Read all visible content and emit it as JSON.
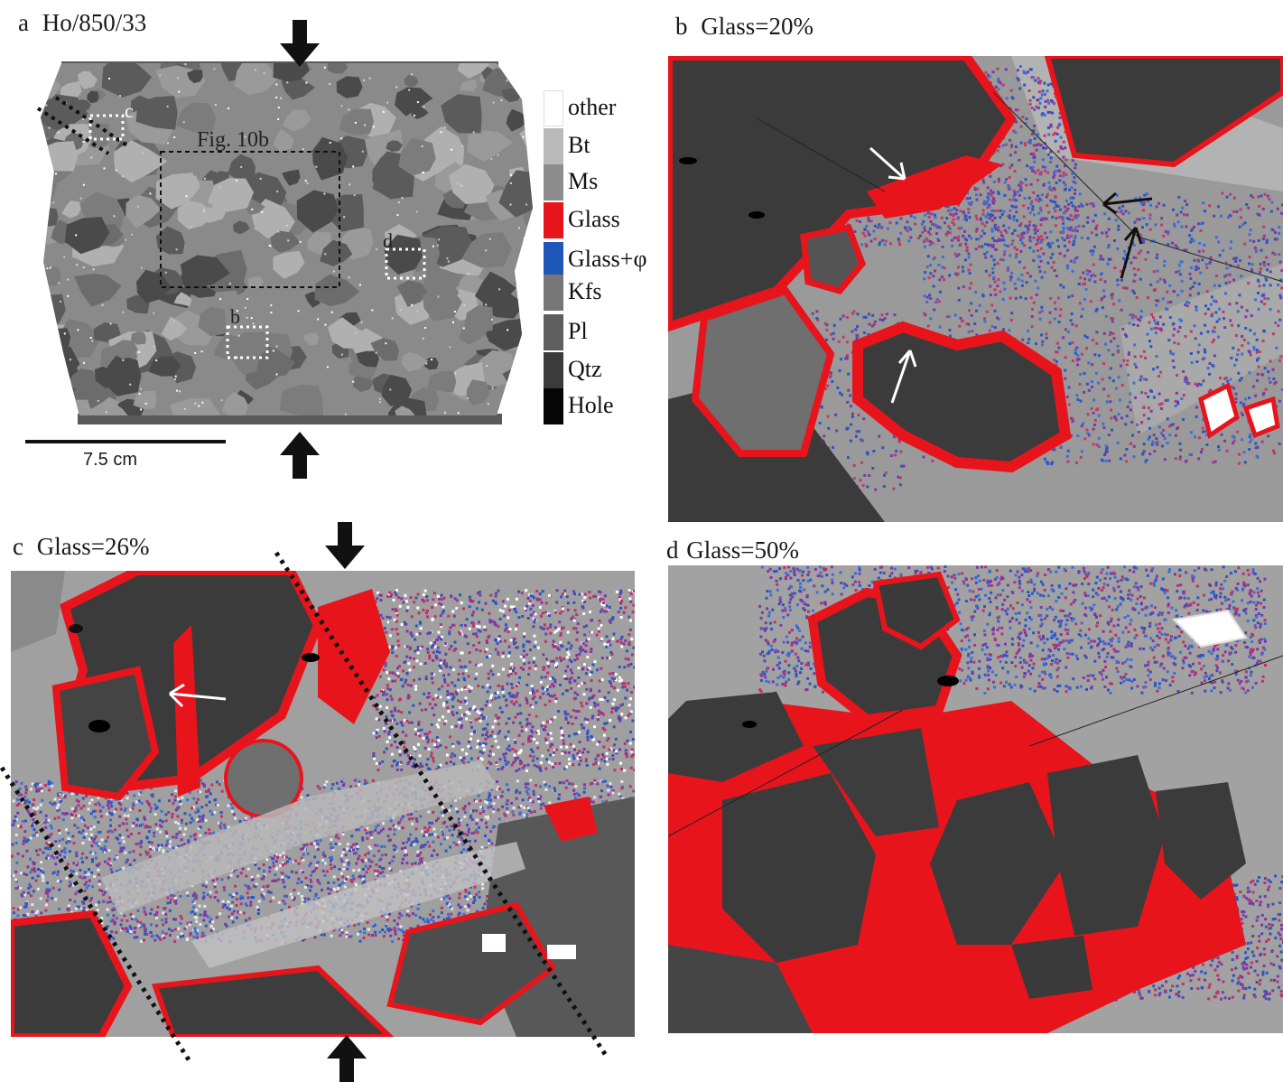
{
  "figure": {
    "panels": [
      {
        "id": "a",
        "label": "a",
        "title": "Ho/850/33"
      },
      {
        "id": "b",
        "label": "b",
        "title": "Glass=20%"
      },
      {
        "id": "c",
        "label": "c",
        "title": "Glass=26%"
      },
      {
        "id": "d",
        "label": "d",
        "title": "Glass=50%"
      }
    ],
    "panel_a": {
      "inset_label": "Fig. 10b",
      "marker_b": "b",
      "marker_c": "c",
      "marker_d": "d",
      "scale_bar_label": "7.5 cm"
    },
    "legend": [
      {
        "name": "other",
        "color": "#ffffff"
      },
      {
        "name": "Bt",
        "color": "#b9b9b9"
      },
      {
        "name": "Ms",
        "color": "#8d8d8d"
      },
      {
        "name": "Glass",
        "color": "#e8141c"
      },
      {
        "name": "Glass+φ",
        "color": "#1f57b8"
      },
      {
        "name": "Kfs",
        "color": "#777777"
      },
      {
        "name": "Pl",
        "color": "#5e5e5e"
      },
      {
        "name": "Qtz",
        "color": "#3b3b3b"
      },
      {
        "name": "Hole",
        "color": "#050505"
      }
    ],
    "colors": {
      "glass": "#e8141c",
      "glass_phi": "#1f57b8",
      "qtz": "#3b3b3b",
      "kfs": "#777777",
      "bt": "#b9b9b9",
      "ms": "#8d8d8d",
      "pl": "#5e5e5e"
    }
  }
}
